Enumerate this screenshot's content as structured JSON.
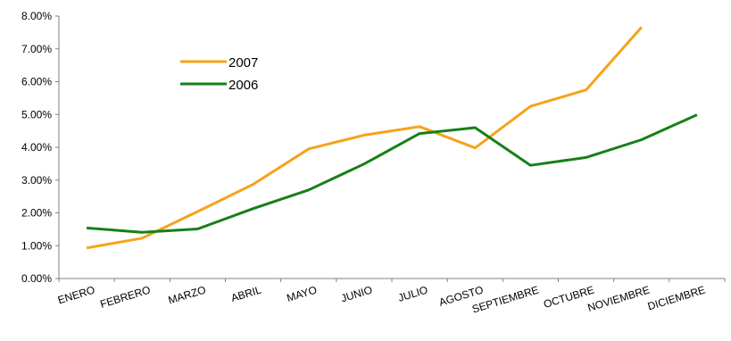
{
  "chart_data": {
    "type": "line",
    "title": "",
    "xlabel": "",
    "ylabel": "",
    "ylim": [
      0,
      8
    ],
    "y_tick_values": [
      0,
      1,
      2,
      3,
      4,
      5,
      6,
      7,
      8
    ],
    "y_tick_labels": [
      "0.00%",
      "1.00%",
      "2.00%",
      "3.00%",
      "4.00%",
      "5.00%",
      "6.00%",
      "7.00%",
      "8.00%"
    ],
    "categories": [
      "ENERO",
      "FEBRERO",
      "MARZO",
      "ABRIL",
      "MAYO",
      "JUNIO",
      "JULIO",
      "AGOSTO",
      "SEPTIEMBRE",
      "OCTUBRE",
      "NOVIEMBRE",
      "DICIEMBRE"
    ],
    "grid": false,
    "legend_position": "top-left",
    "series": [
      {
        "name": "2007",
        "color": "#F7A21B",
        "values": [
          0.93,
          1.23,
          2.04,
          2.87,
          3.95,
          4.37,
          4.63,
          3.98,
          5.25,
          5.75,
          7.66,
          null
        ]
      },
      {
        "name": "2006",
        "color": "#168016",
        "values": [
          1.54,
          1.41,
          1.51,
          2.13,
          2.7,
          3.49,
          4.42,
          4.6,
          3.45,
          3.69,
          4.23,
          4.99
        ]
      }
    ]
  }
}
